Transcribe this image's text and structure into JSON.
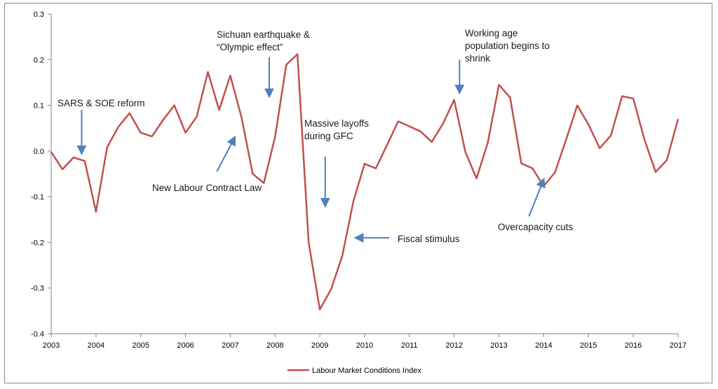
{
  "chart_data": {
    "type": "line",
    "title": "",
    "xlabel": "",
    "ylabel": "",
    "ylim": [
      -0.4,
      0.3
    ],
    "xlim": [
      2003,
      2017
    ],
    "y_ticks": [
      "0.3",
      "0.2",
      "0.1",
      "0.0",
      "-0.1",
      "-0.2",
      "-0.3",
      "-0.4"
    ],
    "x_ticks": [
      "2003",
      "2004",
      "2005",
      "2006",
      "2007",
      "2008",
      "2009",
      "2010",
      "2011",
      "2012",
      "2013",
      "2014",
      "2015",
      "2016",
      "2017"
    ],
    "grid": false,
    "legend_position": "bottom-center",
    "series": [
      {
        "name": "Labour Market Conditions Index",
        "color": "#c0504d",
        "x": [
          2003.0,
          2003.25,
          2003.5,
          2003.75,
          2004.0,
          2004.25,
          2004.5,
          2004.75,
          2005.0,
          2005.25,
          2005.5,
          2005.75,
          2006.0,
          2006.25,
          2006.5,
          2006.75,
          2007.0,
          2007.25,
          2007.5,
          2007.75,
          2008.0,
          2008.25,
          2008.5,
          2008.75,
          2009.0,
          2009.25,
          2009.5,
          2009.75,
          2010.0,
          2010.25,
          2010.5,
          2010.75,
          2011.0,
          2011.25,
          2011.5,
          2011.75,
          2012.0,
          2012.25,
          2012.5,
          2012.75,
          2013.0,
          2013.25,
          2013.5,
          2013.75,
          2014.0,
          2014.25,
          2014.5,
          2014.75,
          2015.0,
          2015.25,
          2015.5,
          2015.75,
          2016.0,
          2016.25,
          2016.5,
          2016.75,
          2017.0
        ],
        "values": [
          -0.002,
          -0.04,
          -0.014,
          -0.022,
          -0.133,
          0.008,
          0.053,
          0.083,
          0.04,
          0.032,
          0.068,
          0.1,
          0.04,
          0.075,
          0.173,
          0.09,
          0.165,
          0.074,
          -0.05,
          -0.07,
          0.031,
          0.189,
          0.212,
          -0.2,
          -0.347,
          -0.303,
          -0.23,
          -0.11,
          -0.028,
          -0.038,
          0.013,
          0.065,
          0.054,
          0.043,
          0.02,
          0.06,
          0.112,
          -0.002,
          -0.06,
          0.018,
          0.145,
          0.117,
          -0.027,
          -0.038,
          -0.077,
          -0.047,
          0.025,
          0.1,
          0.058,
          0.006,
          0.034,
          0.12,
          0.115,
          0.025,
          -0.046,
          -0.02,
          0.07
        ]
      }
    ],
    "annotations": [
      {
        "lines": [
          "SARS & SOE reform"
        ],
        "arrow_to": [
          2003.68,
          -0.005
        ],
        "arrow_from": [
          2003.68,
          0.09
        ]
      },
      {
        "lines": [
          "New Labour Contract Law"
        ],
        "arrow_to": [
          2007.1,
          0.03
        ],
        "arrow_from": [
          2006.7,
          -0.045
        ]
      },
      {
        "lines": [
          "Sichuan earthquake &",
          "“Olympic effect”"
        ],
        "arrow_to": [
          2007.87,
          0.12
        ],
        "arrow_from": [
          2007.87,
          0.205
        ]
      },
      {
        "lines": [
          "Massive layoffs",
          "during GFC"
        ],
        "arrow_to": [
          2009.12,
          -0.12
        ],
        "arrow_from": [
          2009.12,
          -0.012
        ]
      },
      {
        "lines": [
          "Fiscal stimulus"
        ],
        "arrow_to": [
          2009.8,
          -0.19
        ],
        "arrow_from": [
          2010.55,
          -0.19
        ]
      },
      {
        "lines": [
          "Working age",
          "population begins to",
          "shrink"
        ],
        "arrow_to": [
          2012.12,
          0.128
        ],
        "arrow_from": [
          2012.12,
          0.2
        ]
      },
      {
        "lines": [
          "Overcapacity cuts"
        ],
        "arrow_to": [
          2014.0,
          -0.062
        ],
        "arrow_from": [
          2013.67,
          -0.143
        ]
      }
    ]
  }
}
